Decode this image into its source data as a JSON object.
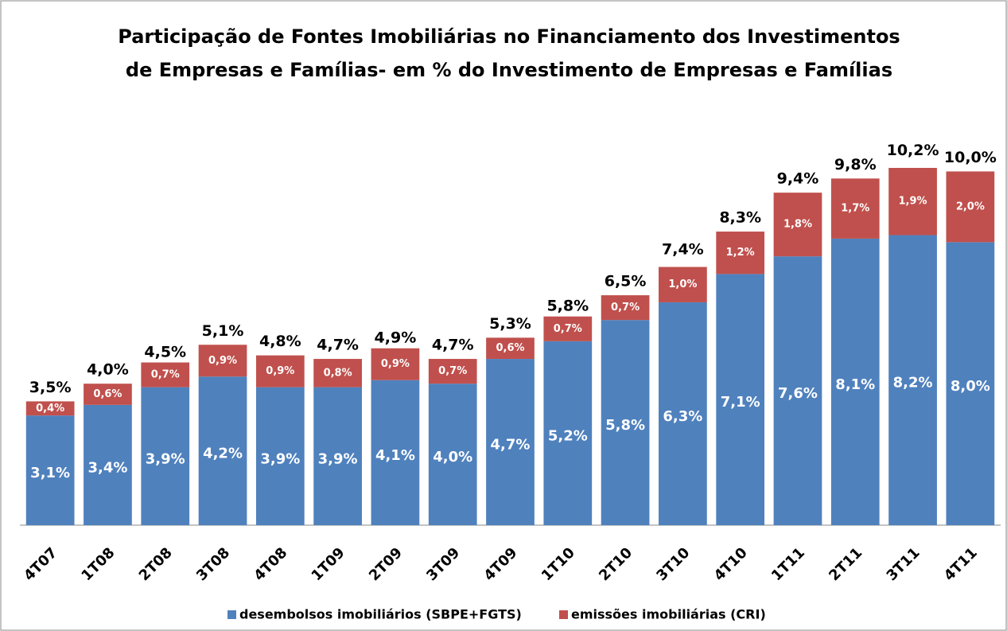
{
  "chart_data": {
    "type": "stacked_bar",
    "title": [
      "Participação de Fontes Imobiliárias no Financiamento dos Investimentos",
      "de Empresas e Famílias- em % do Investimento  de Empresas e Famílias"
    ],
    "categories": [
      "4T07",
      "1T08",
      "2T08",
      "3T08",
      "4T08",
      "1T09",
      "2T09",
      "3T09",
      "4T09",
      "1T10",
      "2T10",
      "3T10",
      "4T10",
      "1T11",
      "2T11",
      "3T11",
      "4T11"
    ],
    "series": [
      {
        "name": "desembolsos imobiliários (SBPE+FGTS)",
        "color": "#4f81bd",
        "values": [
          3.1,
          3.4,
          3.9,
          4.2,
          3.9,
          3.9,
          4.1,
          4.0,
          4.7,
          5.2,
          5.8,
          6.3,
          7.1,
          7.6,
          8.1,
          8.2,
          8.0
        ],
        "value_labels": [
          "3,1%",
          "3,4%",
          "3,9%",
          "4,2%",
          "3,9%",
          "3,9%",
          "4,1%",
          "4,0%",
          "4,7%",
          "5,2%",
          "5,8%",
          "6,3%",
          "7,1%",
          "7,6%",
          "8,1%",
          "8,2%",
          "8,0%"
        ]
      },
      {
        "name": "emissões imobiliárias (CRI)",
        "color": "#c0504d",
        "values": [
          0.4,
          0.6,
          0.7,
          0.9,
          0.9,
          0.8,
          0.9,
          0.7,
          0.6,
          0.7,
          0.7,
          1.0,
          1.2,
          1.8,
          1.7,
          1.9,
          2.0
        ],
        "value_labels": [
          "0,4%",
          "0,6%",
          "0,7%",
          "0,9%",
          "0,9%",
          "0,8%",
          "0,9%",
          "0,7%",
          "0,6%",
          "0,7%",
          "0,7%",
          "1,0%",
          "1,2%",
          "1,8%",
          "1,7%",
          "1,9%",
          "2,0%"
        ]
      }
    ],
    "totals": [
      3.5,
      4.0,
      4.5,
      5.1,
      4.8,
      4.7,
      4.9,
      4.7,
      5.3,
      5.8,
      6.5,
      7.4,
      8.3,
      9.4,
      9.8,
      10.2,
      10.0
    ],
    "total_labels": [
      "3,5%",
      "4,0%",
      "4,5%",
      "5,1%",
      "4,8%",
      "4,7%",
      "4,9%",
      "4,7%",
      "5,3%",
      "5,8%",
      "6,5%",
      "7,4%",
      "8,3%",
      "9,4%",
      "9,8%",
      "10,2%",
      "10,0%"
    ],
    "ylim": [
      0,
      11
    ],
    "legend": "bottom"
  }
}
